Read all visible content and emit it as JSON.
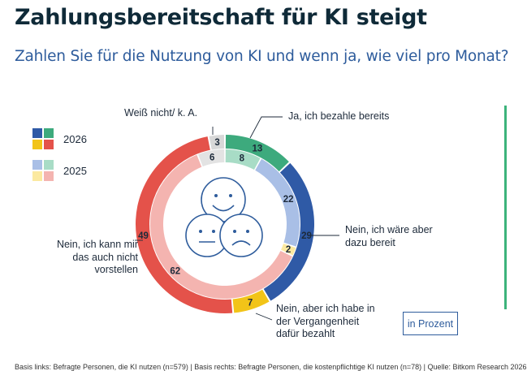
{
  "header": {
    "title": "Zahlungsbereitschaft für KI steigt",
    "subtitle": "Zahlen Sie für die Nutzung von KI und wenn ja, wie viel pro Monat?"
  },
  "legend": {
    "year_2026": "2026",
    "year_2025": "2025"
  },
  "unit_label": "in Prozent",
  "footnote": "Basis links: Befragte Personen, die KI nutzen (n=579) | Basis rechts: Befragte Personen, die kostenpflichtige KI nutzen (n=78) | Quelle: Bitkom Research 2026",
  "chart_data": {
    "type": "donut",
    "title": "Zahlungsbereitschaft für KI steigt",
    "categories": [
      "Ja, ich bezahle bereits",
      "Nein, ich wäre aber dazu bereit",
      "Nein, aber ich habe in der Vergangenheit dafür bezahlt",
      "Nein, ich kann mir das auch nicht vorstellen",
      "Weiß nicht/ k. A."
    ],
    "series": [
      {
        "name": "2026",
        "ring": "outer",
        "values": [
          13,
          29,
          7,
          49,
          3
        ]
      },
      {
        "name": "2025",
        "ring": "inner",
        "values": [
          8,
          22,
          2,
          62,
          6
        ]
      }
    ],
    "colors": {
      "outer": [
        "#3daa7d",
        "#2f5aa6",
        "#f2c418",
        "#e4524a",
        "#d8d8d8"
      ],
      "inner": [
        "#a8dcc6",
        "#a9bfe6",
        "#fbe9a0",
        "#f4b4b0",
        "#e3e3e3"
      ]
    },
    "unit": "in Prozent",
    "legend_position": "top-left"
  },
  "icons": [
    "happy-face-icon",
    "neutral-face-icon",
    "sad-face-icon"
  ],
  "accent_color": "#3cb37b"
}
